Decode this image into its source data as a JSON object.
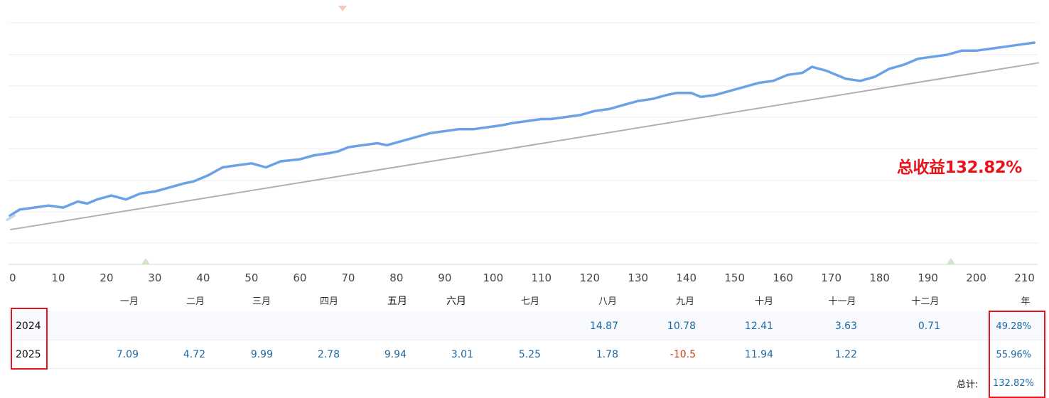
{
  "chart_data": {
    "type": "line",
    "x_ticks": [
      "0",
      "10",
      "20",
      "30",
      "40",
      "50",
      "60",
      "70",
      "80",
      "90",
      "100",
      "110",
      "120",
      "130",
      "140",
      "150",
      "160",
      "170",
      "180",
      "190",
      "200",
      "210"
    ],
    "xlim": [
      0,
      213
    ],
    "grid": "horizontal",
    "series": [
      {
        "color": "#6ba2e6",
        "points": [
          [
            0,
            14
          ],
          [
            2,
            17
          ],
          [
            5,
            18
          ],
          [
            8,
            19
          ],
          [
            11,
            18
          ],
          [
            14,
            21
          ],
          [
            16,
            20
          ],
          [
            18,
            22
          ],
          [
            21,
            24
          ],
          [
            24,
            22
          ],
          [
            27,
            25
          ],
          [
            30,
            26
          ],
          [
            33,
            28
          ],
          [
            36,
            30
          ],
          [
            38,
            31
          ],
          [
            41,
            34
          ],
          [
            44,
            38
          ],
          [
            47,
            39
          ],
          [
            50,
            40
          ],
          [
            53,
            38
          ],
          [
            56,
            41
          ],
          [
            60,
            42
          ],
          [
            63,
            44
          ],
          [
            66,
            45
          ],
          [
            68,
            46
          ],
          [
            70,
            48
          ],
          [
            73,
            49
          ],
          [
            76,
            50
          ],
          [
            78,
            49
          ],
          [
            81,
            51
          ],
          [
            84,
            53
          ],
          [
            87,
            55
          ],
          [
            90,
            56
          ],
          [
            93,
            57
          ],
          [
            96,
            57
          ],
          [
            99,
            58
          ],
          [
            102,
            59
          ],
          [
            104,
            60
          ],
          [
            107,
            61
          ],
          [
            110,
            62
          ],
          [
            112,
            62
          ],
          [
            115,
            63
          ],
          [
            118,
            64
          ],
          [
            121,
            66
          ],
          [
            124,
            67
          ],
          [
            127,
            69
          ],
          [
            130,
            71
          ],
          [
            133,
            72
          ],
          [
            136,
            74
          ],
          [
            138,
            75
          ],
          [
            141,
            75
          ],
          [
            143,
            73
          ],
          [
            146,
            74
          ],
          [
            149,
            76
          ],
          [
            152,
            78
          ],
          [
            155,
            80
          ],
          [
            158,
            81
          ],
          [
            161,
            84
          ],
          [
            164,
            85
          ],
          [
            166,
            88
          ],
          [
            169,
            86
          ],
          [
            171,
            84
          ],
          [
            173,
            82
          ],
          [
            176,
            81
          ],
          [
            179,
            83
          ],
          [
            182,
            87
          ],
          [
            185,
            89
          ],
          [
            188,
            92
          ],
          [
            191,
            93
          ],
          [
            194,
            94
          ],
          [
            197,
            96
          ],
          [
            200,
            96
          ],
          [
            203,
            97
          ],
          [
            206,
            98
          ],
          [
            209,
            99
          ],
          [
            212,
            100
          ]
        ]
      },
      {
        "color": "#b0b0b0",
        "points": [
          [
            0,
            7
          ],
          [
            213,
            90
          ]
        ]
      }
    ]
  },
  "annotation": "总收益132.82%",
  "table": {
    "months": [
      "一月",
      "二月",
      "三月",
      "四月",
      "五月",
      "六月",
      "七月",
      "八月",
      "九月",
      "十月",
      "十一月",
      "十二月"
    ],
    "year_header": "年",
    "rows": [
      {
        "year": "2024",
        "values": [
          "",
          "",
          "",
          "",
          "",
          "",
          "",
          "14.87",
          "10.78",
          "12.41",
          "3.63",
          "0.71"
        ],
        "total": "49.28%"
      },
      {
        "year": "2025",
        "values": [
          "7.09",
          "4.72",
          "9.99",
          "2.78",
          "9.94",
          "3.01",
          "5.25",
          "1.78",
          "-10.5",
          "11.94",
          "1.22",
          ""
        ],
        "total": "55.96%"
      }
    ],
    "total_label": "总计:",
    "total_value": "132.82%"
  }
}
